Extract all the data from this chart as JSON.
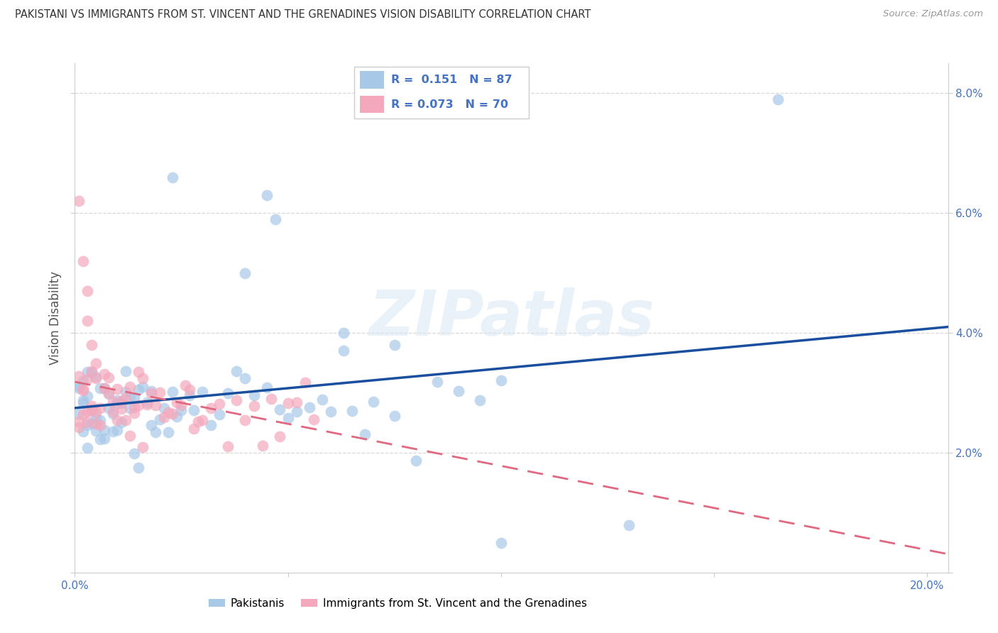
{
  "title": "PAKISTANI VS IMMIGRANTS FROM ST. VINCENT AND THE GRENADINES VISION DISABILITY CORRELATION CHART",
  "source": "Source: ZipAtlas.com",
  "ylabel": "Vision Disability",
  "xlim": [
    0.0,
    0.2
  ],
  "ylim": [
    0.0,
    0.085
  ],
  "color_blue": "#a8c8e8",
  "color_pink": "#f4a8bc",
  "line_blue": "#1a4fa0",
  "line_pink": "#e06880",
  "watermark": "ZIPatlas",
  "r1": "0.151",
  "n1": "87",
  "r2": "0.073",
  "n2": "70",
  "legend_label1": "Pakistanis",
  "legend_label2": "Immigrants from St. Vincent and the Grenadines",
  "tick_color": "#4472c4",
  "grid_color": "#d8d8d8",
  "spine_color": "#cccccc"
}
